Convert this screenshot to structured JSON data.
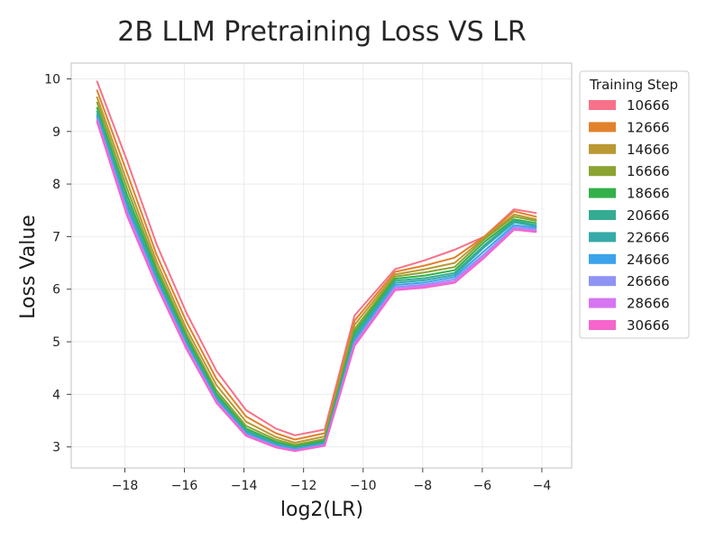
{
  "chart_data": {
    "type": "line",
    "title": "2B LLM Pretraining Loss VS LR",
    "xlabel": "log2(LR)",
    "ylabel": "Loss Value",
    "xlim": [
      -19.8,
      -3.0
    ],
    "ylim": [
      2.6,
      10.3
    ],
    "xticks": [
      -18,
      -16,
      -14,
      -12,
      -10,
      -8,
      -6,
      -4
    ],
    "xtick_labels": [
      "−18",
      "−16",
      "−14",
      "−12",
      "−10",
      "−8",
      "−6",
      "−4"
    ],
    "yticks": [
      3,
      4,
      5,
      6,
      7,
      8,
      9,
      10
    ],
    "ytick_labels": [
      "3",
      "4",
      "5",
      "6",
      "7",
      "8",
      "9",
      "10"
    ],
    "grid": true,
    "legend_title": "Training Step",
    "legend_position": "outside-right-top",
    "x": [
      -18.93,
      -17.93,
      -16.93,
      -15.93,
      -14.93,
      -13.93,
      -12.93,
      -12.29,
      -11.29,
      -10.29,
      -8.93,
      -7.93,
      -6.93,
      -5.93,
      -4.93,
      -4.2
    ],
    "series": [
      {
        "name": "10666",
        "color": "#f77189",
        "values": [
          9.95,
          8.45,
          6.85,
          5.55,
          4.45,
          3.7,
          3.35,
          3.22,
          3.33,
          5.5,
          6.38,
          6.55,
          6.75,
          7.0,
          7.52,
          7.45
        ]
      },
      {
        "name": "12666",
        "color": "#e1812c",
        "values": [
          9.78,
          8.22,
          6.65,
          5.38,
          4.3,
          3.58,
          3.26,
          3.14,
          3.26,
          5.4,
          6.33,
          6.45,
          6.6,
          7.0,
          7.48,
          7.38
        ]
      },
      {
        "name": "14666",
        "color": "#bb9832",
        "values": [
          9.65,
          8.05,
          6.52,
          5.25,
          4.18,
          3.48,
          3.19,
          3.08,
          3.2,
          5.32,
          6.28,
          6.38,
          6.5,
          6.98,
          7.42,
          7.33
        ]
      },
      {
        "name": "16666",
        "color": "#8ba331",
        "values": [
          9.55,
          7.92,
          6.42,
          5.16,
          4.08,
          3.4,
          3.14,
          3.04,
          3.15,
          5.24,
          6.24,
          6.32,
          6.42,
          6.95,
          7.38,
          7.3
        ]
      },
      {
        "name": "18666",
        "color": "#33b04a",
        "values": [
          9.45,
          7.8,
          6.34,
          5.09,
          4.02,
          3.35,
          3.1,
          3.01,
          3.12,
          5.18,
          6.2,
          6.26,
          6.36,
          6.9,
          7.33,
          7.26
        ]
      },
      {
        "name": "20666",
        "color": "#35ac92",
        "values": [
          9.38,
          7.7,
          6.27,
          5.03,
          3.97,
          3.31,
          3.07,
          2.98,
          3.09,
          5.12,
          6.16,
          6.21,
          6.31,
          6.84,
          7.3,
          7.22
        ]
      },
      {
        "name": "22666",
        "color": "#36aaa8",
        "values": [
          9.32,
          7.62,
          6.21,
          4.99,
          3.93,
          3.28,
          3.05,
          2.97,
          3.07,
          5.07,
          6.12,
          6.17,
          6.27,
          6.8,
          7.27,
          7.2
        ]
      },
      {
        "name": "24666",
        "color": "#3ba3ec",
        "values": [
          9.28,
          7.55,
          6.16,
          4.95,
          3.9,
          3.26,
          3.03,
          2.96,
          3.05,
          5.02,
          6.08,
          6.13,
          6.23,
          6.73,
          7.22,
          7.17
        ]
      },
      {
        "name": "26666",
        "color": "#8f93f4",
        "values": [
          9.25,
          7.49,
          6.12,
          4.92,
          3.88,
          3.24,
          3.01,
          2.94,
          3.04,
          4.98,
          6.04,
          6.09,
          6.19,
          6.67,
          7.18,
          7.14
        ]
      },
      {
        "name": "28666",
        "color": "#d775f3",
        "values": [
          9.21,
          7.44,
          6.09,
          4.89,
          3.86,
          3.22,
          3.0,
          2.93,
          3.03,
          4.95,
          6.01,
          6.06,
          6.15,
          6.63,
          7.15,
          7.11
        ]
      },
      {
        "name": "30666",
        "color": "#f565cc",
        "values": [
          9.18,
          7.4,
          6.06,
          4.86,
          3.84,
          3.21,
          2.99,
          2.92,
          3.02,
          4.92,
          5.98,
          6.03,
          6.12,
          6.6,
          7.13,
          7.09
        ]
      }
    ]
  }
}
